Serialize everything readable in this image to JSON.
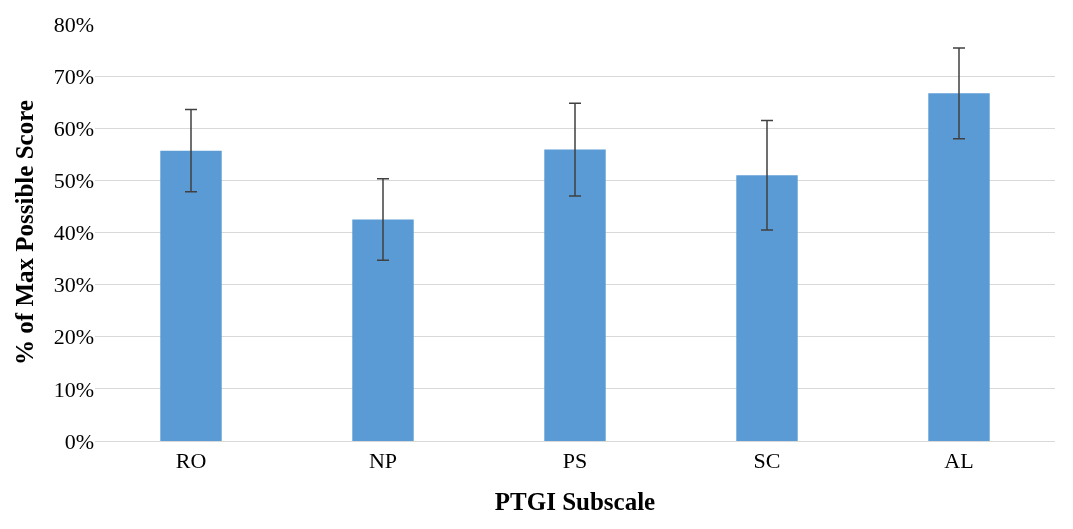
{
  "chart_data": {
    "type": "bar",
    "xlabel": "PTGI Subscale",
    "ylabel": "% of Max Possible Score",
    "categories": [
      "RO",
      "NP",
      "PS",
      "SC",
      "AL"
    ],
    "values": [
      55.7,
      42.5,
      55.9,
      51.0,
      66.7
    ],
    "errors": [
      7.9,
      7.8,
      8.9,
      10.5,
      8.7
    ],
    "color": "#5b9bd5",
    "ylim": [
      0,
      80
    ],
    "yticks": [
      {
        "value": 0,
        "label": "0%"
      },
      {
        "value": 10,
        "label": "10%"
      },
      {
        "value": 20,
        "label": "20%"
      },
      {
        "value": 30,
        "label": "30%"
      },
      {
        "value": 40,
        "label": "40%"
      },
      {
        "value": 50,
        "label": "50%"
      },
      {
        "value": 60,
        "label": "60%"
      },
      {
        "value": 70,
        "label": "70%"
      },
      {
        "value": 80,
        "label": "80%"
      }
    ],
    "grid": "y",
    "legend": false
  }
}
